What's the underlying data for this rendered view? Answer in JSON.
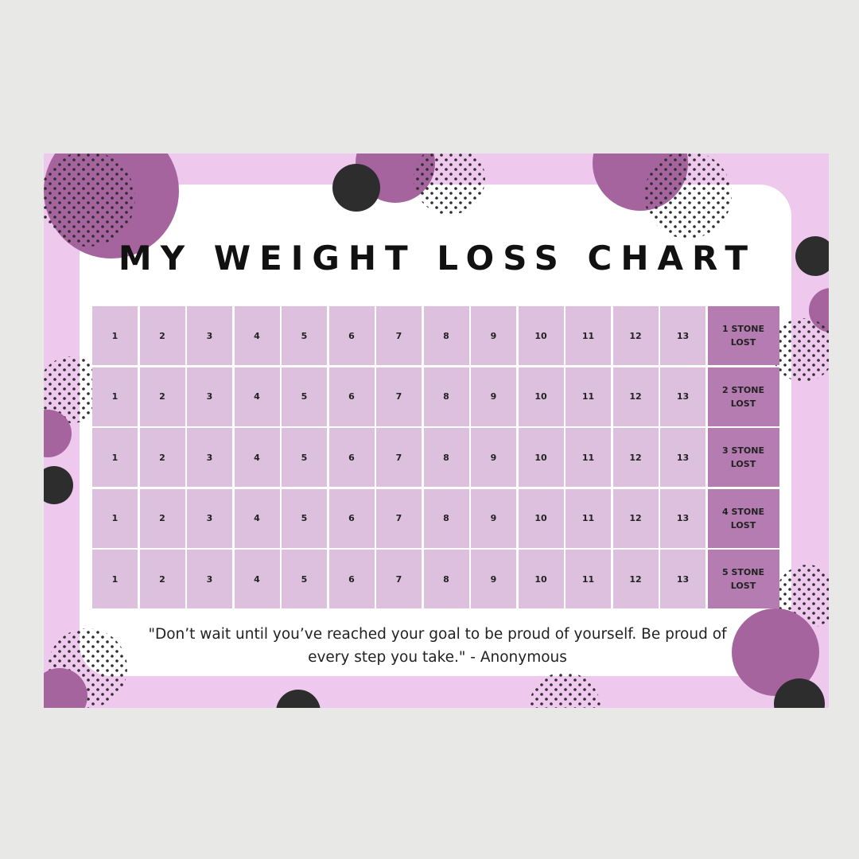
{
  "title": "MY WEIGHT LOSS CHART",
  "table": {
    "rows": [
      {
        "cells": [
          1,
          2,
          3,
          4,
          5,
          6,
          7,
          8,
          9,
          10,
          11,
          12,
          13
        ],
        "label": "1 STONE LOST"
      },
      {
        "cells": [
          1,
          2,
          3,
          4,
          5,
          6,
          7,
          8,
          9,
          10,
          11,
          12,
          13
        ],
        "label": "2 STONE LOST"
      },
      {
        "cells": [
          1,
          2,
          3,
          4,
          5,
          6,
          7,
          8,
          9,
          10,
          11,
          12,
          13
        ],
        "label": "3 STONE LOST"
      },
      {
        "cells": [
          1,
          2,
          3,
          4,
          5,
          6,
          7,
          8,
          9,
          10,
          11,
          12,
          13
        ],
        "label": "4 STONE LOST"
      },
      {
        "cells": [
          1,
          2,
          3,
          4,
          5,
          6,
          7,
          8,
          9,
          10,
          11,
          12,
          13
        ],
        "label": "5 STONE LOST"
      }
    ]
  },
  "quote": "\"Don’t wait until you’ve reached your goal to be proud of yourself. Be proud of every step you take.\" - Anonymous"
}
